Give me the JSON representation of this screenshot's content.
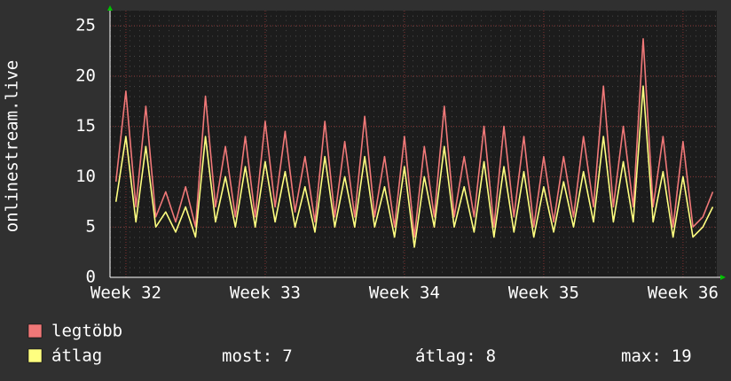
{
  "chart_data": {
    "type": "line",
    "y_label": "onlinestream.live",
    "x": [
      -0.5,
      0,
      0.5,
      1,
      1.5,
      2,
      2.5,
      3,
      3.5,
      4,
      4.5,
      5,
      5.5,
      6,
      6.5,
      7,
      7.5,
      8,
      8.5,
      9,
      9.5,
      10,
      10.5,
      11,
      11.5,
      12,
      12.5,
      13,
      13.5,
      14,
      14.5,
      15,
      15.5,
      16,
      16.5,
      17,
      17.5,
      18,
      18.5,
      19,
      19.5,
      20,
      20.5,
      21,
      21.5,
      22,
      22.5,
      23,
      23.5,
      24,
      24.5,
      25,
      25.5,
      26,
      26.5,
      27,
      27.5,
      28,
      28.5,
      29,
      29.5
    ],
    "xlim": [
      -0.8,
      29.7
    ],
    "xticks": [
      {
        "value": 0,
        "label": "Week 32"
      },
      {
        "value": 7,
        "label": "Week 33"
      },
      {
        "value": 14,
        "label": "Week 34"
      },
      {
        "value": 21,
        "label": "Week 35"
      },
      {
        "value": 28,
        "label": "Week 36"
      }
    ],
    "ylim": [
      0,
      26.5
    ],
    "yticks": [
      0,
      5,
      10,
      15,
      20,
      25
    ],
    "grid": true,
    "series": [
      {
        "name": "legtöbb",
        "color": "#f07878",
        "values": [
          9.5,
          18.5,
          7,
          17,
          6,
          8.5,
          5.5,
          9,
          5,
          18,
          7,
          13,
          6,
          14,
          6,
          15.5,
          7,
          14.5,
          6.5,
          12,
          5.5,
          15.5,
          6,
          13.5,
          6,
          16,
          6,
          12,
          5,
          14,
          4,
          13,
          6,
          17,
          6,
          12,
          6,
          15,
          5,
          15,
          6,
          14,
          5,
          12,
          5.5,
          12,
          6,
          14,
          7,
          19,
          7,
          15,
          7,
          23.7,
          7,
          14,
          5,
          13.5,
          5,
          6,
          8.5
        ]
      },
      {
        "name": "átlag",
        "color": "#ffff80",
        "values": [
          7.5,
          14,
          5.5,
          13,
          5,
          6.5,
          4.5,
          7,
          4,
          14,
          5.5,
          10,
          5,
          11,
          5,
          11.5,
          5.5,
          10.5,
          5,
          9,
          4.5,
          12,
          5,
          10,
          5,
          12,
          5,
          9,
          4,
          11,
          3,
          10,
          5,
          13,
          5,
          9,
          4.5,
          11.5,
          4,
          11,
          4.5,
          10.5,
          4,
          9,
          4.5,
          9.5,
          5,
          10.5,
          5.5,
          14,
          5.5,
          11.5,
          5.5,
          19,
          5.5,
          10.5,
          4,
          10,
          4,
          5,
          7
        ]
      }
    ],
    "stats": [
      {
        "label": "most:",
        "value": 7
      },
      {
        "label": "átlag:",
        "value": 8
      },
      {
        "label": "max:",
        "value": 19
      }
    ]
  }
}
